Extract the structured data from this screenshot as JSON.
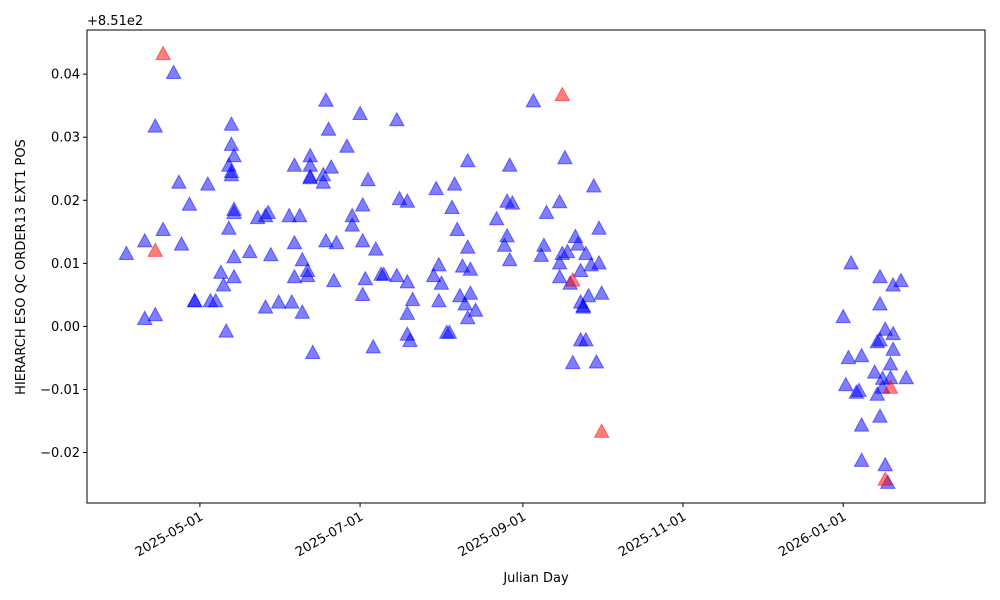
{
  "chart_data": {
    "type": "scatter",
    "xlabel": "Julian Day",
    "ylabel": "HIERARCH ESO QC ORDER13 EXT1 POS",
    "y_offset_label": "+8.51e2",
    "xlim": [
      "2025-03-19",
      "2026-02-24"
    ],
    "ylim": [
      -0.028,
      0.047
    ],
    "x_ticks": [
      "2025-05-01",
      "2025-07-01",
      "2025-09-01",
      "2025-11-01",
      "2026-01-01"
    ],
    "y_ticks": [
      -0.02,
      -0.01,
      0.0,
      0.01,
      0.02,
      0.03,
      0.04
    ],
    "y_tick_labels": [
      "−0.02",
      "−0.01",
      "0.00",
      "0.01",
      "0.02",
      "0.03",
      "0.04"
    ],
    "grid": false,
    "marker": "triangle-up",
    "colors": {
      "normal": "#0000ff",
      "outlier": "#ff0000"
    },
    "series": [
      {
        "role": "normal",
        "points": [
          [
            "2025-03-34",
            0.0115
          ],
          [
            "2025-04-10",
            0.0135
          ],
          [
            "2025-04-10",
            0.0012
          ],
          [
            "2025-04-14",
            0.0018
          ],
          [
            "2025-04-14",
            0.0317
          ],
          [
            "2025-04-17",
            0.0153
          ],
          [
            "2025-04-21",
            0.0402
          ],
          [
            "2025-04-23",
            0.0228
          ],
          [
            "2025-04-24",
            0.013
          ],
          [
            "2025-04-27",
            0.0193
          ],
          [
            "2025-04-29",
            0.004
          ],
          [
            "2025-04-29",
            0.004
          ],
          [
            "2025-05-04",
            0.0225
          ],
          [
            "2025-05-05",
            0.004
          ],
          [
            "2025-05-07",
            0.004
          ],
          [
            "2025-05-09",
            0.0085
          ],
          [
            "2025-05-10",
            0.0065
          ],
          [
            "2025-05-11",
            -0.0008
          ],
          [
            "2025-05-12",
            0.0155
          ],
          [
            "2025-05-12",
            0.0255
          ],
          [
            "2025-05-13",
            0.0288
          ],
          [
            "2025-05-13",
            0.024
          ],
          [
            "2025-05-13",
            0.0245
          ],
          [
            "2025-05-13",
            0.032
          ],
          [
            "2025-05-14",
            0.0185
          ],
          [
            "2025-05-14",
            0.018
          ],
          [
            "2025-05-14",
            0.027
          ],
          [
            "2025-05-14",
            0.011
          ],
          [
            "2025-05-14",
            0.0078
          ],
          [
            "2025-05-20",
            0.0118
          ],
          [
            "2025-05-23",
            0.0172
          ],
          [
            "2025-05-26",
            0.003
          ],
          [
            "2025-05-26",
            0.0175
          ],
          [
            "2025-05-27",
            0.018
          ],
          [
            "2025-05-28",
            0.0113
          ],
          [
            "2025-05-31",
            0.0038
          ],
          [
            "2025-06-04",
            0.0175
          ],
          [
            "2025-06-05",
            0.0038
          ],
          [
            "2025-06-06",
            0.0078
          ],
          [
            "2025-06-06",
            0.0132
          ],
          [
            "2025-06-06",
            0.0255
          ],
          [
            "2025-06-08",
            0.0175
          ],
          [
            "2025-06-09",
            0.0105
          ],
          [
            "2025-06-09",
            0.0022
          ],
          [
            "2025-06-11",
            0.0088
          ],
          [
            "2025-06-11",
            0.008
          ],
          [
            "2025-06-12",
            0.027
          ],
          [
            "2025-06-12",
            0.0255
          ],
          [
            "2025-06-12",
            0.0235
          ],
          [
            "2025-06-12",
            0.0237
          ],
          [
            "2025-06-13",
            -0.0042
          ],
          [
            "2025-06-17",
            0.024
          ],
          [
            "2025-06-17",
            0.0228
          ],
          [
            "2025-06-18",
            0.0135
          ],
          [
            "2025-06-18",
            0.0358
          ],
          [
            "2025-06-19",
            0.0312
          ],
          [
            "2025-06-20",
            0.0252
          ],
          [
            "2025-06-21",
            0.0072
          ],
          [
            "2025-06-22",
            0.0132
          ],
          [
            "2025-06-26",
            0.0285
          ],
          [
            "2025-06-28",
            0.0175
          ],
          [
            "2025-06-28",
            0.016
          ],
          [
            "2025-07-01",
            0.0337
          ],
          [
            "2025-07-02",
            0.0135
          ],
          [
            "2025-07-02",
            0.005
          ],
          [
            "2025-07-02",
            0.0192
          ],
          [
            "2025-07-03",
            0.0075
          ],
          [
            "2025-07-04",
            0.0232
          ],
          [
            "2025-07-06",
            -0.0033
          ],
          [
            "2025-07-07",
            0.0122
          ],
          [
            "2025-07-09",
            0.0082
          ],
          [
            "2025-07-10",
            0.0082
          ],
          [
            "2025-07-15",
            0.008
          ],
          [
            "2025-07-15",
            0.0327
          ],
          [
            "2025-07-16",
            0.0202
          ],
          [
            "2025-07-19",
            0.0198
          ],
          [
            "2025-07-19",
            0.002
          ],
          [
            "2025-07-19",
            -0.0013
          ],
          [
            "2025-07-19",
            0.007
          ],
          [
            "2025-07-20",
            -0.0023
          ],
          [
            "2025-07-21",
            0.0042
          ],
          [
            "2025-07-29",
            0.008
          ],
          [
            "2025-07-30",
            0.0218
          ],
          [
            "2025-07-31",
            0.0097
          ],
          [
            "2025-07-31",
            0.004
          ],
          [
            "2025-08-01",
            0.0068
          ],
          [
            "2025-08-03",
            -0.001
          ],
          [
            "2025-08-04",
            -0.001
          ],
          [
            "2025-08-05",
            0.0188
          ],
          [
            "2025-08-06",
            0.0225
          ],
          [
            "2025-08-07",
            0.0153
          ],
          [
            "2025-08-08",
            0.0048
          ],
          [
            "2025-08-09",
            0.0095
          ],
          [
            "2025-08-10",
            0.0035
          ],
          [
            "2025-08-11",
            0.0013
          ],
          [
            "2025-08-11",
            0.0125
          ],
          [
            "2025-08-11",
            0.0262
          ],
          [
            "2025-08-12",
            0.0052
          ],
          [
            "2025-08-12",
            0.009
          ],
          [
            "2025-08-14",
            0.0025
          ],
          [
            "2025-08-22",
            0.017
          ],
          [
            "2025-08-25",
            0.0128
          ],
          [
            "2025-08-26",
            0.0143
          ],
          [
            "2025-08-26",
            0.0198
          ],
          [
            "2025-08-27",
            0.0105
          ],
          [
            "2025-08-27",
            0.0255
          ],
          [
            "2025-08-28",
            0.0195
          ],
          [
            "2025-09-05",
            0.0357
          ],
          [
            "2025-09-08",
            0.0112
          ],
          [
            "2025-09-09",
            0.0128
          ],
          [
            "2025-09-10",
            0.018
          ],
          [
            "2025-09-15",
            0.0078
          ],
          [
            "2025-09-15",
            0.01
          ],
          [
            "2025-09-15",
            0.0197
          ],
          [
            "2025-09-16",
            0.0115
          ],
          [
            "2025-09-17",
            0.0267
          ],
          [
            "2025-09-18",
            0.0118
          ],
          [
            "2025-09-19",
            0.0068
          ],
          [
            "2025-09-20",
            -0.0058
          ],
          [
            "2025-09-21",
            0.0142
          ],
          [
            "2025-09-22",
            0.013
          ],
          [
            "2025-09-23",
            0.0088
          ],
          [
            "2025-09-23",
            0.0038
          ],
          [
            "2025-09-23",
            -0.0022
          ],
          [
            "2025-09-24",
            0.003
          ],
          [
            "2025-09-24",
            0.0032
          ],
          [
            "2025-09-25",
            0.0115
          ],
          [
            "2025-09-25",
            -0.0022
          ],
          [
            "2025-09-26",
            0.0048
          ],
          [
            "2025-09-27",
            0.0097
          ],
          [
            "2025-09-28",
            0.0222
          ],
          [
            "2025-09-29",
            -0.0057
          ],
          [
            "2025-09-30",
            0.0155
          ],
          [
            "2025-09-30",
            0.01
          ],
          [
            "2025-10-01",
            0.0052
          ],
          [
            "2026-01-01",
            0.0015
          ],
          [
            "2026-01-02",
            -0.0093
          ],
          [
            "2026-01-03",
            -0.005
          ],
          [
            "2026-01-04",
            0.01
          ],
          [
            "2026-01-06",
            -0.0105
          ],
          [
            "2026-01-07",
            -0.0102
          ],
          [
            "2026-01-08",
            -0.0157
          ],
          [
            "2026-01-08",
            -0.0213
          ],
          [
            "2026-01-08",
            -0.0047
          ],
          [
            "2026-01-13",
            -0.0073
          ],
          [
            "2026-01-14",
            -0.0025
          ],
          [
            "2026-01-14",
            -0.0108
          ],
          [
            "2026-01-15",
            0.0035
          ],
          [
            "2026-01-15",
            -0.0022
          ],
          [
            "2026-01-15",
            -0.0143
          ],
          [
            "2026-01-15",
            0.0078
          ],
          [
            "2026-01-16",
            -0.0097
          ],
          [
            "2026-01-16",
            -0.0083
          ],
          [
            "2026-01-17",
            -0.0005
          ],
          [
            "2026-01-17",
            -0.022
          ],
          [
            "2026-01-18",
            -0.0248
          ],
          [
            "2026-01-19",
            -0.006
          ],
          [
            "2026-01-19",
            -0.0082
          ],
          [
            "2026-01-20",
            -0.0037
          ],
          [
            "2026-01-20",
            -0.0012
          ],
          [
            "2026-01-20",
            0.0065
          ],
          [
            "2026-01-23",
            0.0072
          ],
          [
            "2026-01-25",
            -0.0082
          ]
        ]
      },
      {
        "role": "outlier",
        "points": [
          [
            "2025-04-14",
            0.012
          ],
          [
            "2025-04-17",
            0.0432
          ],
          [
            "2025-09-16",
            0.0367
          ],
          [
            "2025-09-20",
            0.0073
          ],
          [
            "2025-10-01",
            -0.0167
          ],
          [
            "2026-01-17",
            -0.0243
          ],
          [
            "2026-01-19",
            -0.0097
          ]
        ]
      }
    ]
  }
}
